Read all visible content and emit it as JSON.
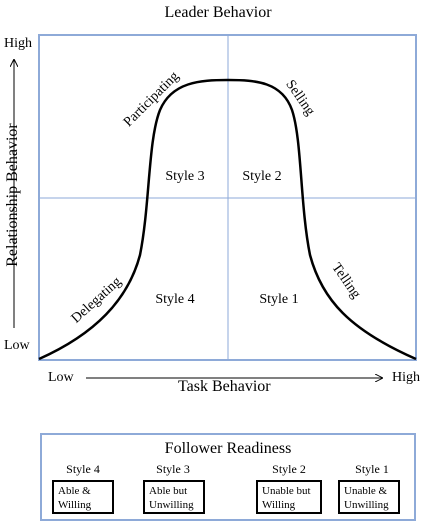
{
  "diagram": {
    "title": "Leader Behavior",
    "y_axis": {
      "label": "Relationship Behavior",
      "high": "High",
      "low": "Low"
    },
    "x_axis": {
      "label": "Task Behavior",
      "low": "Low",
      "high": "High"
    },
    "quadrants": {
      "top_left": "Style 3",
      "top_right": "Style 2",
      "bottom_left": "Style 4",
      "bottom_right": "Style 1"
    },
    "curve_labels": {
      "participating": "Participating",
      "selling": "Selling",
      "delegating": "Delegating",
      "telling": "Telling"
    },
    "colors": {
      "frame": "#8eaad8",
      "curve": "#000000"
    }
  },
  "follower_readiness": {
    "title": "Follower Readiness",
    "levels": [
      {
        "style": "Style 4",
        "line1": "Able &",
        "line2": "Willing"
      },
      {
        "style": "Style 3",
        "line1": "Able but",
        "line2": "Unwilling"
      },
      {
        "style": "Style 2",
        "line1": "Unable but",
        "line2": "Willing"
      },
      {
        "style": "Style 1",
        "line1": "Unable &",
        "line2": "Unwilling"
      }
    ]
  }
}
